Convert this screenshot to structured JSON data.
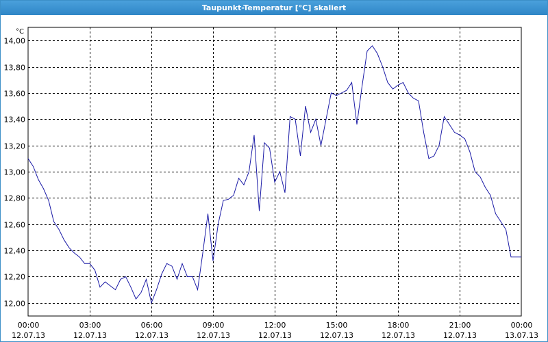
{
  "window": {
    "title": "Taupunkt-Temperatur [°C] skaliert"
  },
  "colors": {
    "line": "#1a1aa6",
    "grid": "#000000",
    "title_bar": "#3a8fd0"
  },
  "chart_data": {
    "type": "line",
    "title": "Taupunkt-Temperatur [°C] skaliert",
    "ylabel": "°C",
    "xlabel": "",
    "ylim": [
      11.9,
      14.1
    ],
    "xlim": [
      0,
      24
    ],
    "grid": true,
    "y_ticks": [
      12.0,
      12.2,
      12.4,
      12.6,
      12.8,
      13.0,
      13.2,
      13.4,
      13.6,
      13.8,
      14.0
    ],
    "y_tick_labels": [
      "12,00",
      "12,20",
      "12,40",
      "12,60",
      "12,80",
      "13,00",
      "13,20",
      "13,40",
      "13,60",
      "13,80",
      "14,00"
    ],
    "x_ticks": [
      0,
      3,
      6,
      9,
      12,
      15,
      18,
      21,
      24
    ],
    "x_tick_labels": [
      [
        "00:00",
        "12.07.13"
      ],
      [
        "03:00",
        "12.07.13"
      ],
      [
        "06:00",
        "12.07.13"
      ],
      [
        "09:00",
        "12.07.13"
      ],
      [
        "12:00",
        "12.07.13"
      ],
      [
        "15:00",
        "12.07.13"
      ],
      [
        "18:00",
        "12.07.13"
      ],
      [
        "21:00",
        "12.07.13"
      ],
      [
        "00:00",
        "13.07.13"
      ]
    ],
    "x": [
      0,
      0.25,
      0.5,
      0.75,
      1.0,
      1.25,
      1.5,
      1.75,
      2.0,
      2.25,
      2.5,
      2.75,
      3.0,
      3.25,
      3.5,
      3.75,
      4.0,
      4.25,
      4.5,
      4.75,
      5.0,
      5.25,
      5.5,
      5.75,
      6.0,
      6.25,
      6.5,
      6.75,
      7.0,
      7.25,
      7.5,
      7.75,
      8.0,
      8.25,
      8.5,
      8.75,
      9.0,
      9.25,
      9.5,
      9.75,
      10.0,
      10.25,
      10.5,
      10.75,
      11.0,
      11.25,
      11.5,
      11.75,
      12.0,
      12.25,
      12.5,
      12.75,
      13.0,
      13.25,
      13.5,
      13.75,
      14.0,
      14.25,
      14.5,
      14.75,
      15.0,
      15.25,
      15.5,
      15.75,
      16.0,
      16.25,
      16.5,
      16.75,
      17.0,
      17.25,
      17.5,
      17.75,
      18.0,
      18.25,
      18.5,
      18.75,
      19.0,
      19.25,
      19.5,
      19.75,
      20.0,
      20.25,
      20.5,
      20.75,
      21.0,
      21.25,
      21.5,
      21.75,
      22.0,
      22.25,
      22.5,
      22.75,
      23.0,
      23.25,
      23.5,
      23.75,
      24.0
    ],
    "series": [
      {
        "values": [
          13.1,
          13.04,
          12.94,
          12.87,
          12.78,
          12.62,
          12.56,
          12.48,
          12.42,
          12.38,
          12.35,
          12.3,
          12.3,
          12.25,
          12.12,
          12.16,
          12.13,
          12.1,
          12.18,
          12.2,
          12.12,
          12.03,
          12.08,
          12.18,
          12.0,
          12.1,
          12.22,
          12.3,
          12.28,
          12.18,
          12.3,
          12.2,
          12.2,
          12.1,
          12.38,
          12.68,
          12.32,
          12.6,
          12.78,
          12.79,
          12.82,
          12.95,
          12.9,
          13.0,
          13.28,
          12.7,
          13.22,
          13.18,
          12.92,
          13.0,
          12.84,
          13.42,
          13.4,
          13.12,
          13.5,
          13.3,
          13.4,
          13.2,
          13.4,
          13.6,
          13.58,
          13.6,
          13.62,
          13.68,
          13.36,
          13.65,
          13.92,
          13.96,
          13.9,
          13.8,
          13.68,
          13.63,
          13.66,
          13.68,
          13.6,
          13.56,
          13.54,
          13.3,
          13.1,
          13.12,
          13.2,
          13.42,
          13.36,
          13.3,
          13.28,
          13.25,
          13.15,
          13.0,
          12.96,
          12.88,
          12.82,
          12.68,
          12.62,
          12.56,
          12.35,
          12.35,
          12.35
        ]
      }
    ]
  }
}
